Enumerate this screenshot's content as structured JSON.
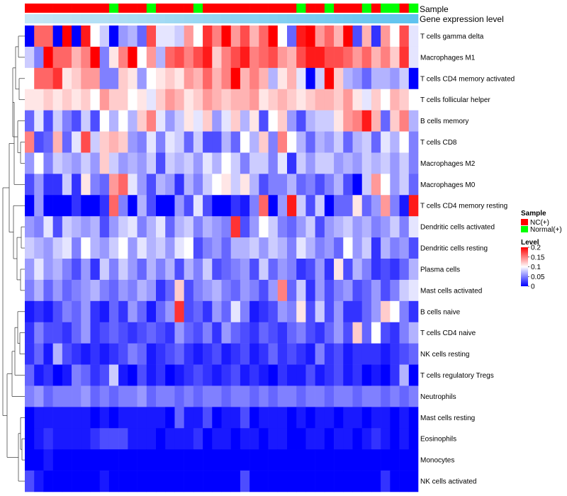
{
  "chart_data": {
    "type": "heatmap",
    "annotation_titles": {
      "sample": "Sample",
      "gene_expression": "Gene expression level"
    },
    "rows": [
      "T cells gamma delta",
      "Macrophages M1",
      "T cells CD4 memory activated",
      "T cells follicular helper",
      "B cells memory",
      "T cells CD8",
      "Macrophages M2",
      "Macrophages M0",
      "T cells CD4 memory resting",
      "Dendritic cells activated",
      "Dendritic cells resting",
      "Plasma cells",
      "Mast cells activated",
      "B cells naive",
      "T cells CD4 naive",
      "NK cells resting",
      "T cells regulatory  Tregs",
      "Neutrophils",
      "Mast cells resting",
      "Eosinophils",
      "Monocytes",
      "NK cells activated"
    ],
    "n_columns": 42,
    "sample_groups": [
      "NC",
      "NC",
      "NC",
      "NC",
      "NC",
      "NC",
      "NC",
      "NC",
      "NC",
      "Normal",
      "NC",
      "NC",
      "NC",
      "Normal",
      "NC",
      "NC",
      "NC",
      "NC",
      "Normal",
      "NC",
      "NC",
      "NC",
      "NC",
      "NC",
      "NC",
      "NC",
      "NC",
      "NC",
      "NC",
      "Normal",
      "NC",
      "NC",
      "Normal",
      "NC",
      "NC",
      "NC",
      "Normal",
      "NC",
      "Normal",
      "Normal",
      "NC",
      "Normal"
    ],
    "sample_colors": {
      "NC": "#ff0000",
      "Normal": "#00ff00"
    },
    "gene_expression_gradient": [
      "#c6e6f6",
      "#5fc3ef"
    ],
    "color_scale": {
      "low": "#0000ff",
      "mid": "#ffffff",
      "high": "#ff0000",
      "min": 0,
      "mid_value": 0.1,
      "max": 0.2
    },
    "legend": {
      "sample_title": "Sample",
      "sample_items": [
        {
          "label": "NC(+)",
          "color": "#ff0000"
        },
        {
          "label": "Normal(+)",
          "color": "#00ff00"
        }
      ],
      "level_title": "Level",
      "level_ticks": [
        "0.2",
        "0.15",
        "0.1",
        "0.05",
        "0"
      ],
      "level_tick_values": [
        0.2,
        0.15,
        0.1,
        0.05,
        0
      ]
    },
    "values": [
      [
        0.0,
        0.16,
        0.16,
        0.0,
        0.2,
        0.0,
        0.19,
        0.1,
        0.08,
        0.0,
        0.06,
        0.07,
        0.04,
        0.17,
        0.09,
        0.09,
        0.08,
        0.14,
        0.1,
        0.18,
        0.15,
        0.2,
        0.14,
        0.17,
        0.13,
        0.16,
        0.2,
        0.1,
        0.04,
        0.19,
        0.2,
        0.14,
        0.16,
        0.13,
        0.2,
        0.03,
        0.13,
        0.02,
        0.14,
        0.1,
        0.17,
        0.09
      ],
      [
        0.08,
        0.05,
        0.2,
        0.16,
        0.16,
        0.13,
        0.15,
        0.2,
        0.05,
        0.11,
        0.15,
        0.2,
        0.1,
        0.14,
        0.07,
        0.16,
        0.17,
        0.15,
        0.17,
        0.19,
        0.12,
        0.15,
        0.17,
        0.19,
        0.15,
        0.16,
        0.17,
        0.14,
        0.13,
        0.17,
        0.19,
        0.19,
        0.17,
        0.17,
        0.16,
        0.14,
        0.16,
        0.13,
        0.15,
        0.12,
        0.18,
        0.09
      ],
      [
        0.1,
        0.16,
        0.16,
        0.18,
        0.11,
        0.12,
        0.14,
        0.14,
        0.05,
        0.05,
        0.12,
        0.11,
        0.06,
        0.1,
        0.11,
        0.12,
        0.11,
        0.14,
        0.13,
        0.16,
        0.13,
        0.15,
        0.2,
        0.13,
        0.15,
        0.13,
        0.07,
        0.11,
        0.13,
        0.09,
        0.0,
        0.08,
        0.2,
        0.12,
        0.07,
        0.06,
        0.04,
        0.07,
        0.07,
        0.06,
        0.08,
        0.0
      ],
      [
        0.11,
        0.11,
        0.12,
        0.11,
        0.12,
        0.11,
        0.12,
        0.1,
        0.14,
        0.12,
        0.12,
        0.1,
        0.11,
        0.09,
        0.12,
        0.14,
        0.13,
        0.11,
        0.12,
        0.14,
        0.13,
        0.12,
        0.13,
        0.13,
        0.14,
        0.11,
        0.12,
        0.13,
        0.12,
        0.11,
        0.12,
        0.13,
        0.13,
        0.12,
        0.14,
        0.11,
        0.09,
        0.12,
        0.1,
        0.13,
        0.12,
        0.1
      ],
      [
        0.04,
        0.09,
        0.03,
        0.08,
        0.05,
        0.03,
        0.08,
        0.03,
        0.1,
        0.07,
        0.1,
        0.07,
        0.12,
        0.15,
        0.09,
        0.06,
        0.08,
        0.11,
        0.09,
        0.12,
        0.06,
        0.09,
        0.12,
        0.07,
        0.11,
        0.03,
        0.1,
        0.12,
        0.06,
        0.03,
        0.07,
        0.08,
        0.08,
        0.11,
        0.14,
        0.15,
        0.19,
        0.13,
        0.04,
        0.12,
        0.15,
        0.07
      ],
      [
        0.15,
        0.03,
        0.04,
        0.13,
        0.04,
        0.09,
        0.17,
        0.08,
        0.12,
        0.13,
        0.12,
        0.06,
        0.05,
        0.09,
        0.05,
        0.09,
        0.08,
        0.04,
        0.08,
        0.03,
        0.03,
        0.07,
        0.04,
        0.1,
        0.07,
        0.12,
        0.05,
        0.15,
        0.1,
        0.07,
        0.04,
        0.07,
        0.06,
        0.08,
        0.04,
        0.07,
        0.08,
        0.04,
        0.09,
        0.07,
        0.1,
        0.05
      ],
      [
        0.06,
        0.1,
        0.05,
        0.08,
        0.07,
        0.06,
        0.08,
        0.06,
        0.12,
        0.08,
        0.06,
        0.07,
        0.06,
        0.08,
        0.03,
        0.08,
        0.07,
        0.08,
        0.06,
        0.09,
        0.07,
        0.1,
        0.08,
        0.05,
        0.08,
        0.08,
        0.05,
        0.09,
        0.02,
        0.08,
        0.06,
        0.08,
        0.08,
        0.06,
        0.07,
        0.06,
        0.08,
        0.07,
        0.08,
        0.06,
        0.08,
        0.05
      ],
      [
        0.03,
        0.06,
        0.02,
        0.02,
        0.08,
        0.02,
        0.11,
        0.05,
        0.04,
        0.14,
        0.16,
        0.09,
        0.06,
        0.03,
        0.07,
        0.06,
        0.02,
        0.07,
        0.05,
        0.08,
        0.1,
        0.11,
        0.08,
        0.11,
        0.07,
        0.03,
        0.05,
        0.05,
        0.07,
        0.04,
        0.05,
        0.03,
        0.05,
        0.07,
        0.03,
        0.0,
        0.08,
        0.14,
        0.1,
        0.06,
        0.08,
        0.04
      ],
      [
        0.0,
        0.06,
        0.0,
        0.0,
        0.0,
        0.02,
        0.0,
        0.0,
        0.02,
        0.16,
        0.05,
        0.0,
        0.07,
        0.03,
        0.0,
        0.0,
        0.06,
        0.03,
        0.09,
        0.03,
        0.0,
        0.0,
        0.02,
        0.01,
        0.05,
        0.16,
        0.0,
        0.06,
        0.19,
        0.08,
        0.03,
        0.08,
        0.0,
        0.04,
        0.04,
        0.11,
        0.04,
        0.06,
        0.14,
        0.05,
        0.01,
        0.19
      ],
      [
        0.06,
        0.05,
        0.09,
        0.03,
        0.08,
        0.07,
        0.06,
        0.07,
        0.03,
        0.06,
        0.08,
        0.09,
        0.05,
        0.07,
        0.09,
        0.04,
        0.07,
        0.08,
        0.05,
        0.07,
        0.06,
        0.05,
        0.18,
        0.03,
        0.06,
        0.1,
        0.08,
        0.05,
        0.04,
        0.06,
        0.08,
        0.03,
        0.06,
        0.07,
        0.08,
        0.06,
        0.07,
        0.05,
        0.06,
        0.08,
        0.05,
        0.09
      ],
      [
        0.08,
        0.07,
        0.06,
        0.08,
        0.09,
        0.05,
        0.1,
        0.07,
        0.06,
        0.08,
        0.1,
        0.06,
        0.09,
        0.07,
        0.08,
        0.06,
        0.09,
        0.1,
        0.03,
        0.05,
        0.06,
        0.04,
        0.07,
        0.07,
        0.08,
        0.06,
        0.08,
        0.07,
        0.05,
        0.09,
        0.07,
        0.05,
        0.06,
        0.04,
        0.1,
        0.06,
        0.08,
        0.02,
        0.07,
        0.05,
        0.06,
        0.03
      ],
      [
        0.06,
        0.09,
        0.06,
        0.07,
        0.05,
        0.03,
        0.06,
        0.02,
        0.08,
        0.05,
        0.08,
        0.06,
        0.04,
        0.07,
        0.05,
        0.07,
        0.03,
        0.07,
        0.05,
        0.08,
        0.03,
        0.04,
        0.05,
        0.06,
        0.03,
        0.08,
        0.04,
        0.06,
        0.05,
        0.02,
        0.03,
        0.06,
        0.02,
        0.11,
        0.03,
        0.07,
        0.05,
        0.02,
        0.03,
        0.02,
        0.04,
        0.07
      ],
      [
        0.05,
        0.07,
        0.04,
        0.06,
        0.04,
        0.05,
        0.06,
        0.07,
        0.05,
        0.04,
        0.06,
        0.05,
        0.07,
        0.06,
        0.02,
        0.04,
        0.12,
        0.03,
        0.05,
        0.06,
        0.07,
        0.05,
        0.04,
        0.06,
        0.05,
        0.03,
        0.06,
        0.15,
        0.04,
        0.08,
        0.02,
        0.06,
        0.03,
        0.05,
        0.06,
        0.03,
        0.04,
        0.06,
        0.03,
        0.05,
        0.08,
        0.09
      ],
      [
        0.01,
        0.02,
        0.01,
        0.03,
        0.05,
        0.04,
        0.06,
        0.02,
        0.01,
        0.04,
        0.02,
        0.06,
        0.04,
        0.01,
        0.04,
        0.06,
        0.18,
        0.03,
        0.04,
        0.02,
        0.06,
        0.04,
        0.09,
        0.05,
        0.01,
        0.02,
        0.03,
        0.06,
        0.05,
        0.11,
        0.03,
        0.08,
        0.03,
        0.06,
        0.02,
        0.02,
        0.04,
        0.06,
        0.12,
        0.1,
        0.05,
        0.02
      ],
      [
        0.02,
        0.05,
        0.03,
        0.03,
        0.02,
        0.04,
        0.06,
        0.02,
        0.03,
        0.04,
        0.03,
        0.02,
        0.03,
        0.04,
        0.03,
        0.02,
        0.06,
        0.04,
        0.03,
        0.05,
        0.02,
        0.06,
        0.04,
        0.03,
        0.02,
        0.04,
        0.03,
        0.02,
        0.04,
        0.05,
        0.03,
        0.02,
        0.04,
        0.06,
        0.03,
        0.12,
        0.04,
        0.1,
        0.03,
        0.02,
        0.05,
        0.07
      ],
      [
        0.02,
        0.04,
        0.01,
        0.07,
        0.03,
        0.02,
        0.01,
        0.02,
        0.01,
        0.02,
        0.03,
        0.05,
        0.04,
        0.01,
        0.02,
        0.03,
        0.04,
        0.02,
        0.01,
        0.02,
        0.03,
        0.01,
        0.02,
        0.03,
        0.01,
        0.02,
        0.04,
        0.02,
        0.03,
        0.02,
        0.01,
        0.05,
        0.02,
        0.03,
        0.01,
        0.02,
        0.02,
        0.02,
        0.01,
        0.02,
        0.03,
        0.04
      ],
      [
        0.04,
        0.01,
        0.02,
        0.0,
        0.01,
        0.05,
        0.04,
        0.02,
        0.03,
        0.08,
        0.01,
        0.0,
        0.03,
        0.01,
        0.02,
        0.0,
        0.01,
        0.02,
        0.03,
        0.02,
        0.01,
        0.02,
        0.03,
        0.01,
        0.02,
        0.01,
        0.0,
        0.02,
        0.01,
        0.01,
        0.03,
        0.01,
        0.02,
        0.03,
        0.01,
        0.02,
        0.0,
        0.01,
        0.0,
        0.02,
        0.07,
        0.0
      ],
      [
        0.05,
        0.06,
        0.04,
        0.05,
        0.05,
        0.05,
        0.06,
        0.04,
        0.05,
        0.04,
        0.05,
        0.05,
        0.06,
        0.04,
        0.05,
        0.05,
        0.04,
        0.05,
        0.04,
        0.05,
        0.05,
        0.04,
        0.05,
        0.05,
        0.04,
        0.05,
        0.04,
        0.05,
        0.05,
        0.04,
        0.05,
        0.05,
        0.04,
        0.05,
        0.05,
        0.04,
        0.05,
        0.05,
        0.04,
        0.05,
        0.04,
        0.05
      ],
      [
        0.0,
        0.01,
        0.01,
        0.01,
        0.01,
        0.01,
        0.01,
        0.0,
        0.01,
        0.0,
        0.01,
        0.01,
        0.01,
        0.01,
        0.01,
        0.0,
        0.04,
        0.01,
        0.01,
        0.03,
        0.0,
        0.01,
        0.01,
        0.03,
        0.0,
        0.01,
        0.01,
        0.01,
        0.0,
        0.01,
        0.0,
        0.01,
        0.01,
        0.0,
        0.01,
        0.01,
        0.0,
        0.01,
        0.01,
        0.0,
        0.01,
        0.0
      ],
      [
        0.0,
        0.01,
        0.02,
        0.01,
        0.01,
        0.01,
        0.01,
        0.02,
        0.03,
        0.03,
        0.03,
        0.01,
        0.01,
        0.01,
        0.0,
        0.01,
        0.01,
        0.01,
        0.02,
        0.0,
        0.01,
        0.01,
        0.0,
        0.01,
        0.01,
        0.0,
        0.01,
        0.01,
        0.0,
        0.0,
        0.01,
        0.01,
        0.0,
        0.01,
        0.01,
        0.0,
        0.01,
        0.02,
        0.01,
        0.0,
        0.01,
        0.0
      ],
      [
        0.0,
        0.0,
        0.01,
        0.0,
        0.0,
        0.0,
        0.0,
        0.0,
        0.0,
        0.0,
        0.0,
        0.0,
        0.0,
        0.0,
        0.0,
        0.0,
        0.0,
        0.0,
        0.0,
        0.0,
        0.0,
        0.0,
        0.0,
        0.0,
        0.0,
        0.0,
        0.0,
        0.0,
        0.0,
        0.0,
        0.0,
        0.0,
        0.0,
        0.0,
        0.0,
        0.0,
        0.0,
        0.0,
        0.0,
        0.0,
        0.0,
        0.0
      ],
      [
        0.03,
        0.01,
        0.0,
        0.0,
        0.0,
        0.0,
        0.0,
        0.0,
        0.01,
        0.0,
        0.0,
        0.0,
        0.0,
        0.0,
        0.0,
        0.0,
        0.0,
        0.0,
        0.0,
        0.0,
        0.0,
        0.0,
        0.0,
        0.03,
        0.0,
        0.0,
        0.0,
        0.0,
        0.0,
        0.0,
        0.0,
        0.0,
        0.0,
        0.0,
        0.0,
        0.0,
        0.0,
        0.0,
        0.02,
        0.0,
        0.0,
        0.0
      ]
    ]
  }
}
